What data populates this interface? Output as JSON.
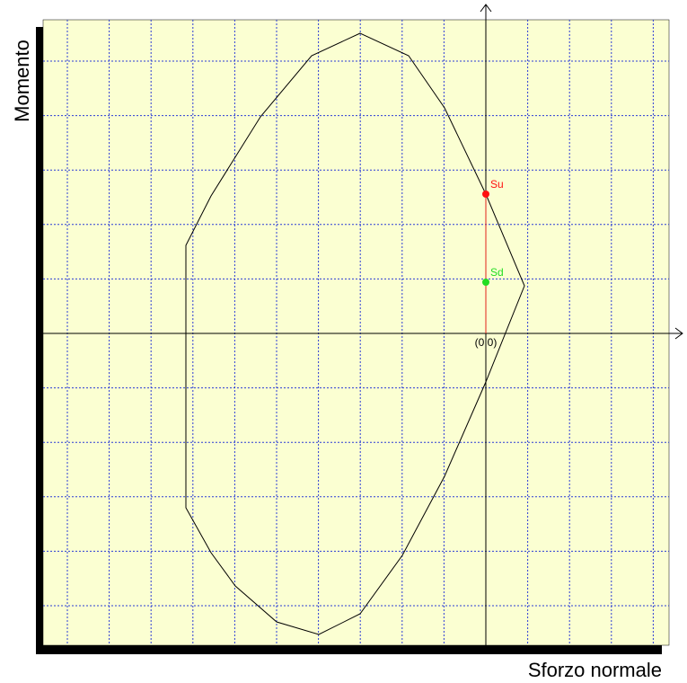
{
  "axes": {
    "y_label": "Momento",
    "x_label": "Sforzo normale",
    "origin_label": "(0 0)"
  },
  "points": {
    "su": "Su",
    "sd": "Sd"
  }
}
